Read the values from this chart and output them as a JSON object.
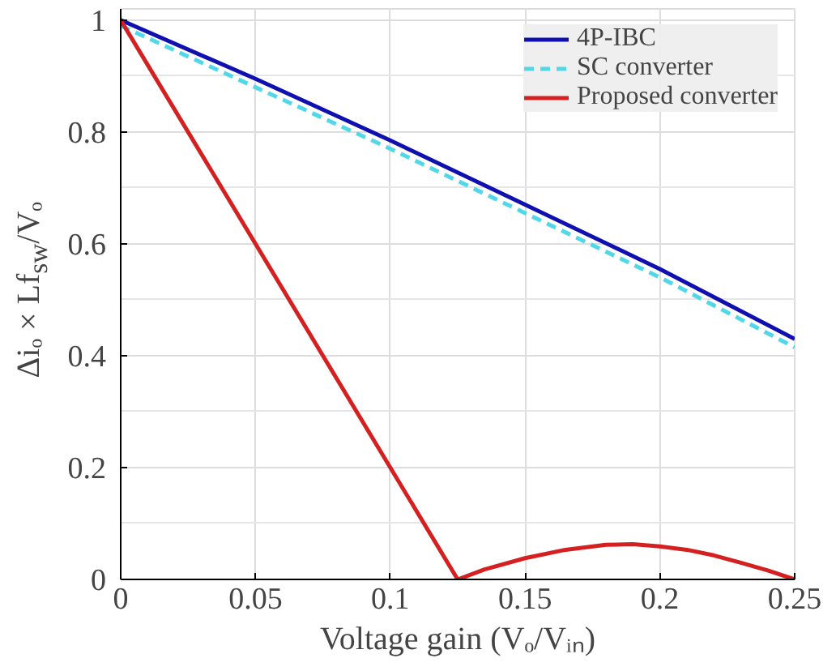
{
  "chart_data": {
    "type": "line",
    "xlabel": "Voltage gain (Vₒ/Vᵢₙ)",
    "ylabel": "Δiₒ × Lf$_{sw}$/Vₒ",
    "xlim": [
      0,
      0.25
    ],
    "ylim": [
      0,
      1.02
    ],
    "xticks": [
      0,
      0.05,
      0.1,
      0.15,
      0.2,
      0.25
    ],
    "yticks": [
      0,
      0.2,
      0.4,
      0.6,
      0.8,
      1
    ],
    "grid": true,
    "legend": "top right",
    "series": [
      {
        "name": "4P-IBC",
        "color": "#1010b0",
        "line_style": "solid",
        "x": [
          0,
          0.05,
          0.1,
          0.15,
          0.2,
          0.25
        ],
        "values": [
          1.0,
          0.895,
          0.785,
          0.67,
          0.555,
          0.43
        ]
      },
      {
        "name": "SC converter",
        "color": "#50d8e8",
        "line_style": "dashed",
        "x": [
          0,
          0.05,
          0.1,
          0.15,
          0.2,
          0.25
        ],
        "values": [
          0.99,
          0.88,
          0.77,
          0.655,
          0.54,
          0.415
        ]
      },
      {
        "name": "Proposed converter",
        "color": "#d42020",
        "line_style": "solid",
        "x": [
          0,
          0.125,
          0.135,
          0.15,
          0.165,
          0.18,
          0.19,
          0.2,
          0.21,
          0.22,
          0.23,
          0.24,
          0.25
        ],
        "values": [
          1.0,
          0,
          0.018,
          0.038,
          0.053,
          0.062,
          0.063,
          0.059,
          0.053,
          0.043,
          0.03,
          0.016,
          0
        ]
      }
    ]
  }
}
